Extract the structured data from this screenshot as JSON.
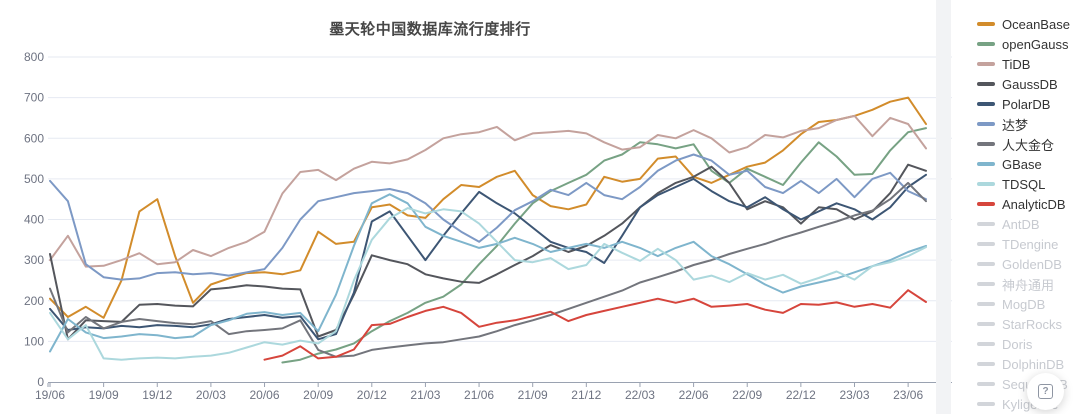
{
  "title": "墨天轮中国数据库流行度排行",
  "colors": {
    "title_text": "#464646",
    "axis_label": "#6e7382",
    "axis_line": "#9aa2b1",
    "gridline": "#e6eaf2",
    "legend_active_text": "#333333",
    "legend_disabled": "#d2d5da",
    "background": "#ffffff"
  },
  "legend": {
    "items": [
      {
        "label": "OceanBase",
        "color": "#d28c2b",
        "active": true
      },
      {
        "label": "openGauss",
        "color": "#77a284",
        "active": true
      },
      {
        "label": "TiDB",
        "color": "#c4a29d",
        "active": true
      },
      {
        "label": "GaussDB",
        "color": "#54565c",
        "active": true
      },
      {
        "label": "PolarDB",
        "color": "#3d5674",
        "active": true
      },
      {
        "label": "达梦",
        "color": "#7d99c5",
        "active": true
      },
      {
        "label": "人大金仓",
        "color": "#73757c",
        "active": true
      },
      {
        "label": "GBase",
        "color": "#7fb5cd",
        "active": true
      },
      {
        "label": "TDSQL",
        "color": "#acd8dd",
        "active": true
      },
      {
        "label": "AnalyticDB",
        "color": "#d6453c",
        "active": true
      },
      {
        "label": "AntDB",
        "color": "#d2d5da",
        "active": false
      },
      {
        "label": "TDengine",
        "color": "#d2d5da",
        "active": false
      },
      {
        "label": "GoldenDB",
        "color": "#d2d5da",
        "active": false
      },
      {
        "label": "神舟通用",
        "color": "#d2d5da",
        "active": false
      },
      {
        "label": "MogDB",
        "color": "#d2d5da",
        "active": false
      },
      {
        "label": "StarRocks",
        "color": "#d2d5da",
        "active": false
      },
      {
        "label": "Doris",
        "color": "#d2d5da",
        "active": false
      },
      {
        "label": "DolphinDB",
        "color": "#d2d5da",
        "active": false
      },
      {
        "label": "SequoiaDB",
        "color": "#d2d5da",
        "active": false
      },
      {
        "label": "Kyligence",
        "color": "#d2d5da",
        "active": false
      }
    ]
  },
  "float_button": {
    "icon": "question-square-icon",
    "glyph": "?"
  },
  "chart_data": {
    "type": "line",
    "title": "墨天轮中国数据库流行度排行",
    "xlabel": "",
    "ylabel": "",
    "ylim": [
      0,
      800
    ],
    "y_ticks": [
      0,
      100,
      200,
      300,
      400,
      500,
      600,
      700,
      800
    ],
    "grid": true,
    "legend_position": "right",
    "x": [
      "19/06",
      "19/07",
      "19/08",
      "19/09",
      "19/10",
      "19/11",
      "19/12",
      "20/01",
      "20/02",
      "20/03",
      "20/04",
      "20/05",
      "20/06",
      "20/07",
      "20/08",
      "20/09",
      "20/10",
      "20/11",
      "20/12",
      "21/01",
      "21/02",
      "21/03",
      "21/04",
      "21/05",
      "21/06",
      "21/07",
      "21/08",
      "21/09",
      "21/10",
      "21/11",
      "21/12",
      "22/01",
      "22/02",
      "22/03",
      "22/04",
      "22/05",
      "22/06",
      "22/07",
      "22/08",
      "22/09",
      "22/10",
      "22/11",
      "22/12",
      "23/01",
      "23/02",
      "23/03",
      "23/04",
      "23/05",
      "23/06",
      "23/07"
    ],
    "x_tick_labels": [
      "19/06",
      "19/09",
      "19/12",
      "20/03",
      "20/06",
      "20/09",
      "20/12",
      "21/03",
      "21/06",
      "21/09",
      "21/12",
      "22/03",
      "22/06",
      "22/09",
      "22/12",
      "23/03",
      "23/06"
    ],
    "series": [
      {
        "name": "OceanBase",
        "color": "#d28c2b",
        "values": [
          205,
          160,
          185,
          158,
          250,
          420,
          450,
          310,
          195,
          240,
          255,
          268,
          270,
          265,
          275,
          370,
          340,
          345,
          430,
          437,
          410,
          404,
          450,
          485,
          480,
          505,
          520,
          460,
          433,
          425,
          437,
          505,
          493,
          500,
          550,
          555,
          505,
          490,
          510,
          530,
          540,
          570,
          610,
          640,
          645,
          655,
          670,
          690,
          700,
          635
        ]
      },
      {
        "name": "openGauss",
        "color": "#77a284",
        "values": [
          null,
          null,
          null,
          null,
          null,
          null,
          null,
          null,
          null,
          null,
          null,
          null,
          null,
          48,
          55,
          70,
          80,
          95,
          125,
          150,
          170,
          195,
          210,
          240,
          290,
          335,
          390,
          440,
          470,
          490,
          510,
          545,
          560,
          590,
          585,
          575,
          585,
          520,
          490,
          525,
          505,
          485,
          540,
          590,
          555,
          510,
          512,
          570,
          615,
          625
        ]
      },
      {
        "name": "TiDB",
        "color": "#c4a29d",
        "values": [
          300,
          360,
          284,
          286,
          300,
          317,
          290,
          295,
          325,
          310,
          330,
          345,
          370,
          464,
          517,
          522,
          497,
          525,
          542,
          538,
          548,
          571,
          600,
          610,
          615,
          628,
          595,
          612,
          615,
          618,
          612,
          590,
          572,
          578,
          608,
          600,
          620,
          600,
          565,
          578,
          608,
          602,
          618,
          625,
          645,
          655,
          605,
          650,
          635,
          575
        ]
      },
      {
        "name": "GaussDB",
        "color": "#54565c",
        "values": [
          315,
          105,
          152,
          150,
          148,
          190,
          192,
          188,
          186,
          228,
          232,
          238,
          235,
          230,
          228,
          112,
          128,
          215,
          312,
          300,
          290,
          265,
          255,
          247,
          244,
          265,
          288,
          310,
          337,
          320,
          335,
          360,
          390,
          430,
          465,
          490,
          505,
          530,
          490,
          425,
          445,
          430,
          390,
          430,
          425,
          400,
          420,
          465,
          535,
          520
        ]
      },
      {
        "name": "PolarDB",
        "color": "#3d5674",
        "values": [
          180,
          128,
          135,
          132,
          138,
          135,
          140,
          138,
          135,
          142,
          155,
          160,
          165,
          158,
          162,
          105,
          118,
          220,
          395,
          420,
          360,
          300,
          360,
          415,
          468,
          440,
          415,
          380,
          345,
          330,
          320,
          293,
          360,
          430,
          460,
          480,
          500,
          470,
          445,
          430,
          455,
          425,
          400,
          420,
          440,
          425,
          400,
          430,
          480,
          510
        ]
      },
      {
        "name": "达梦",
        "color": "#7d99c5",
        "values": [
          495,
          445,
          290,
          258,
          252,
          255,
          268,
          270,
          265,
          268,
          262,
          270,
          278,
          330,
          400,
          445,
          455,
          465,
          470,
          475,
          465,
          440,
          400,
          370,
          345,
          380,
          423,
          445,
          473,
          460,
          490,
          460,
          450,
          480,
          520,
          545,
          560,
          545,
          510,
          520,
          480,
          465,
          495,
          465,
          500,
          455,
          500,
          515,
          470,
          450
        ]
      },
      {
        "name": "人大金仓",
        "color": "#73757c",
        "values": [
          230,
          122,
          160,
          132,
          148,
          155,
          150,
          145,
          142,
          150,
          118,
          125,
          128,
          132,
          152,
          79,
          62,
          65,
          79,
          85,
          90,
          95,
          98,
          105,
          112,
          125,
          140,
          152,
          165,
          180,
          195,
          210,
          225,
          245,
          258,
          272,
          288,
          300,
          315,
          328,
          340,
          355,
          368,
          382,
          395,
          410,
          422,
          450,
          490,
          445
        ]
      },
      {
        "name": "GBase",
        "color": "#7fb5cd",
        "values": [
          75,
          155,
          122,
          108,
          112,
          118,
          115,
          108,
          112,
          140,
          152,
          168,
          172,
          165,
          170,
          125,
          215,
          335,
          440,
          462,
          440,
          382,
          360,
          345,
          330,
          340,
          355,
          340,
          320,
          330,
          340,
          330,
          345,
          330,
          310,
          330,
          345,
          310,
          290,
          265,
          240,
          220,
          235,
          245,
          255,
          270,
          285,
          300,
          320,
          335
        ]
      },
      {
        "name": "TDSQL",
        "color": "#acd8dd",
        "values": [
          170,
          105,
          140,
          58,
          55,
          58,
          60,
          58,
          62,
          65,
          72,
          85,
          98,
          92,
          102,
          95,
          125,
          250,
          350,
          403,
          428,
          415,
          425,
          420,
          390,
          345,
          300,
          295,
          305,
          278,
          288,
          340,
          318,
          298,
          328,
          300,
          252,
          262,
          246,
          268,
          252,
          264,
          242,
          256,
          272,
          252,
          285,
          295,
          310,
          332
        ]
      },
      {
        "name": "AnalyticDB",
        "color": "#d6453c",
        "values": [
          null,
          null,
          null,
          null,
          null,
          null,
          null,
          null,
          null,
          null,
          null,
          null,
          55,
          65,
          88,
          58,
          62,
          80,
          140,
          143,
          160,
          175,
          185,
          170,
          136,
          146,
          152,
          162,
          173,
          150,
          165,
          175,
          185,
          195,
          205,
          195,
          205,
          185,
          188,
          192,
          178,
          170,
          192,
          190,
          196,
          185,
          192,
          183,
          226,
          197
        ]
      }
    ]
  }
}
